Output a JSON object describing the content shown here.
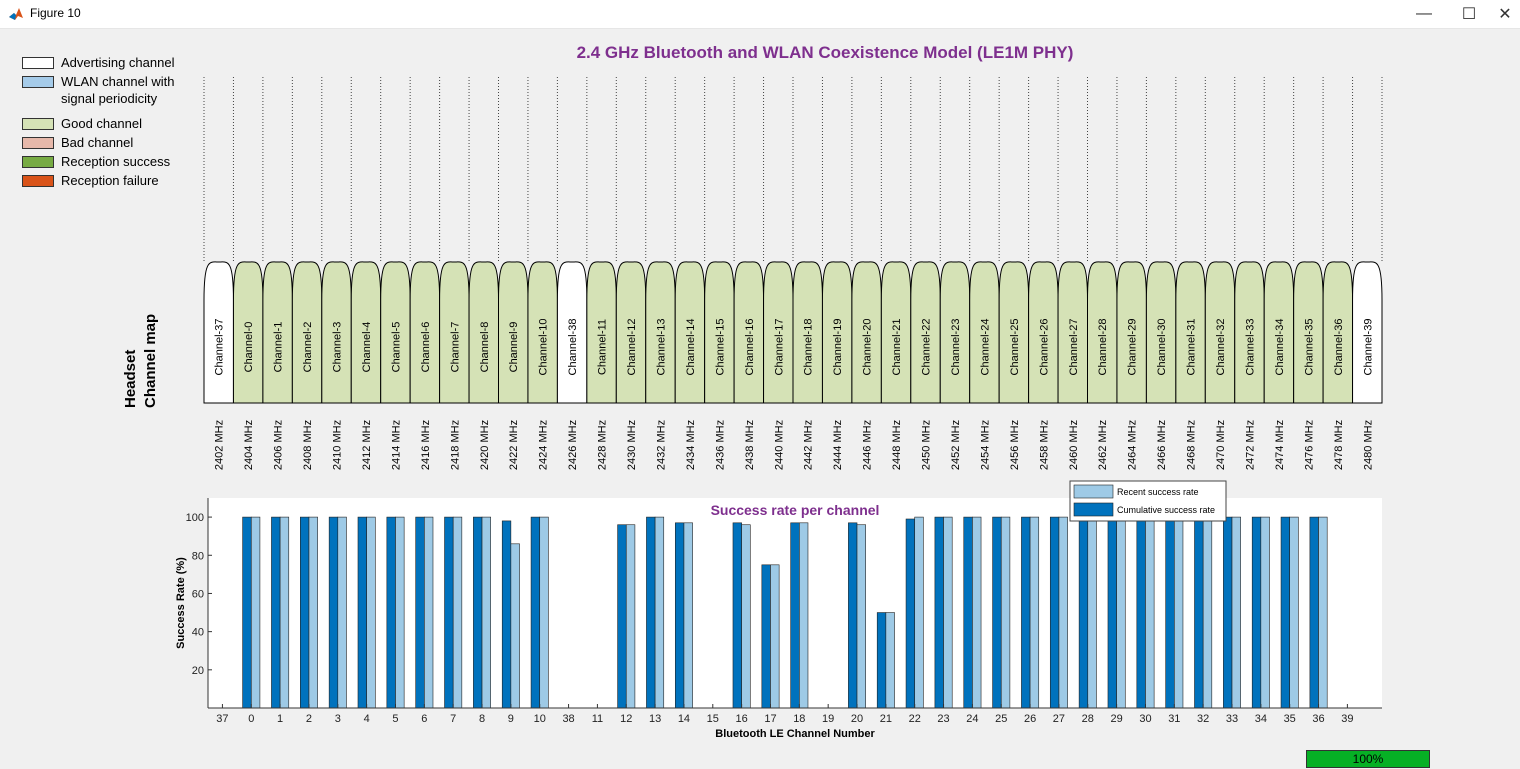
{
  "window": {
    "title": "Figure 10",
    "minimize_glyph": "—",
    "maximize_glyph": "☐",
    "close_glyph": "✕"
  },
  "main_title": "2.4 GHz Bluetooth and WLAN Coexistence Model (LE1M PHY)",
  "legend": [
    {
      "label": "Advertising channel",
      "color": "#ffffff"
    },
    {
      "label": "WLAN channel with signal periodicity",
      "color": "#a5cbe9"
    },
    {
      "label": "Good channel",
      "color": "#d5e2b6"
    },
    {
      "label": "Bad channel",
      "color": "#e6b8aa"
    },
    {
      "label": "Reception success",
      "color": "#77ab43"
    },
    {
      "label": "Reception failure",
      "color": "#d95319"
    }
  ],
  "channel_map": {
    "ylabel_line1": "Headset",
    "ylabel_line2": "Channel map",
    "channels": [
      {
        "label": "Channel-37",
        "freq": "2402 MHz",
        "type": "advertising"
      },
      {
        "label": "Channel-0",
        "freq": "2404 MHz",
        "type": "good"
      },
      {
        "label": "Channel-1",
        "freq": "2406 MHz",
        "type": "good"
      },
      {
        "label": "Channel-2",
        "freq": "2408 MHz",
        "type": "good"
      },
      {
        "label": "Channel-3",
        "freq": "2410 MHz",
        "type": "good"
      },
      {
        "label": "Channel-4",
        "freq": "2412 MHz",
        "type": "good"
      },
      {
        "label": "Channel-5",
        "freq": "2414 MHz",
        "type": "good"
      },
      {
        "label": "Channel-6",
        "freq": "2416 MHz",
        "type": "good"
      },
      {
        "label": "Channel-7",
        "freq": "2418 MHz",
        "type": "good"
      },
      {
        "label": "Channel-8",
        "freq": "2420 MHz",
        "type": "good"
      },
      {
        "label": "Channel-9",
        "freq": "2422 MHz",
        "type": "good"
      },
      {
        "label": "Channel-10",
        "freq": "2424 MHz",
        "type": "good"
      },
      {
        "label": "Channel-38",
        "freq": "2426 MHz",
        "type": "advertising"
      },
      {
        "label": "Channel-11",
        "freq": "2428 MHz",
        "type": "good"
      },
      {
        "label": "Channel-12",
        "freq": "2430 MHz",
        "type": "good"
      },
      {
        "label": "Channel-13",
        "freq": "2432 MHz",
        "type": "good"
      },
      {
        "label": "Channel-14",
        "freq": "2434 MHz",
        "type": "good"
      },
      {
        "label": "Channel-15",
        "freq": "2436 MHz",
        "type": "good"
      },
      {
        "label": "Channel-16",
        "freq": "2438 MHz",
        "type": "good"
      },
      {
        "label": "Channel-17",
        "freq": "2440 MHz",
        "type": "good"
      },
      {
        "label": "Channel-18",
        "freq": "2442 MHz",
        "type": "good"
      },
      {
        "label": "Channel-19",
        "freq": "2444 MHz",
        "type": "good"
      },
      {
        "label": "Channel-20",
        "freq": "2446 MHz",
        "type": "good"
      },
      {
        "label": "Channel-21",
        "freq": "2448 MHz",
        "type": "good"
      },
      {
        "label": "Channel-22",
        "freq": "2450 MHz",
        "type": "good"
      },
      {
        "label": "Channel-23",
        "freq": "2452 MHz",
        "type": "good"
      },
      {
        "label": "Channel-24",
        "freq": "2454 MHz",
        "type": "good"
      },
      {
        "label": "Channel-25",
        "freq": "2456 MHz",
        "type": "good"
      },
      {
        "label": "Channel-26",
        "freq": "2458 MHz",
        "type": "good"
      },
      {
        "label": "Channel-27",
        "freq": "2460 MHz",
        "type": "good"
      },
      {
        "label": "Channel-28",
        "freq": "2462 MHz",
        "type": "good"
      },
      {
        "label": "Channel-29",
        "freq": "2464 MHz",
        "type": "good"
      },
      {
        "label": "Channel-30",
        "freq": "2466 MHz",
        "type": "good"
      },
      {
        "label": "Channel-31",
        "freq": "2468 MHz",
        "type": "good"
      },
      {
        "label": "Channel-32",
        "freq": "2470 MHz",
        "type": "good"
      },
      {
        "label": "Channel-33",
        "freq": "2472 MHz",
        "type": "good"
      },
      {
        "label": "Channel-34",
        "freq": "2474 MHz",
        "type": "good"
      },
      {
        "label": "Channel-35",
        "freq": "2476 MHz",
        "type": "good"
      },
      {
        "label": "Channel-36",
        "freq": "2478 MHz",
        "type": "good"
      },
      {
        "label": "Channel-39",
        "freq": "2480 MHz",
        "type": "advertising"
      }
    ]
  },
  "chart_data": {
    "type": "bar",
    "title": "Success rate per channel",
    "xlabel": "Bluetooth LE Channel Number",
    "ylabel": "Success Rate (%)",
    "ylim": [
      0,
      110
    ],
    "yticks": [
      20,
      40,
      60,
      80,
      100
    ],
    "grid": false,
    "legend_position": "top-right",
    "categories": [
      "37",
      "0",
      "1",
      "2",
      "3",
      "4",
      "5",
      "6",
      "7",
      "8",
      "9",
      "10",
      "38",
      "11",
      "12",
      "13",
      "14",
      "15",
      "16",
      "17",
      "18",
      "19",
      "20",
      "21",
      "22",
      "23",
      "24",
      "25",
      "26",
      "27",
      "28",
      "29",
      "30",
      "31",
      "32",
      "33",
      "34",
      "35",
      "36",
      "39"
    ],
    "series": [
      {
        "name": "Cumulative success rate",
        "color": "#0072bd",
        "values": [
          null,
          100,
          100,
          100,
          100,
          100,
          100,
          100,
          100,
          100,
          98,
          100,
          null,
          null,
          96,
          100,
          97,
          null,
          97,
          75,
          97,
          null,
          97,
          50,
          99,
          100,
          100,
          100,
          100,
          100,
          100,
          100,
          100,
          100,
          100,
          100,
          100,
          100,
          100,
          null
        ]
      },
      {
        "name": "Recent success rate",
        "color": "#9ecae6",
        "values": [
          null,
          100,
          100,
          100,
          100,
          100,
          100,
          100,
          100,
          100,
          86,
          100,
          null,
          null,
          96,
          100,
          97,
          null,
          96,
          75,
          97,
          null,
          96,
          50,
          100,
          100,
          100,
          100,
          100,
          100,
          100,
          100,
          100,
          100,
          100,
          100,
          100,
          100,
          100,
          null
        ]
      }
    ]
  },
  "progress": {
    "value": 1.0,
    "text": "100%"
  }
}
